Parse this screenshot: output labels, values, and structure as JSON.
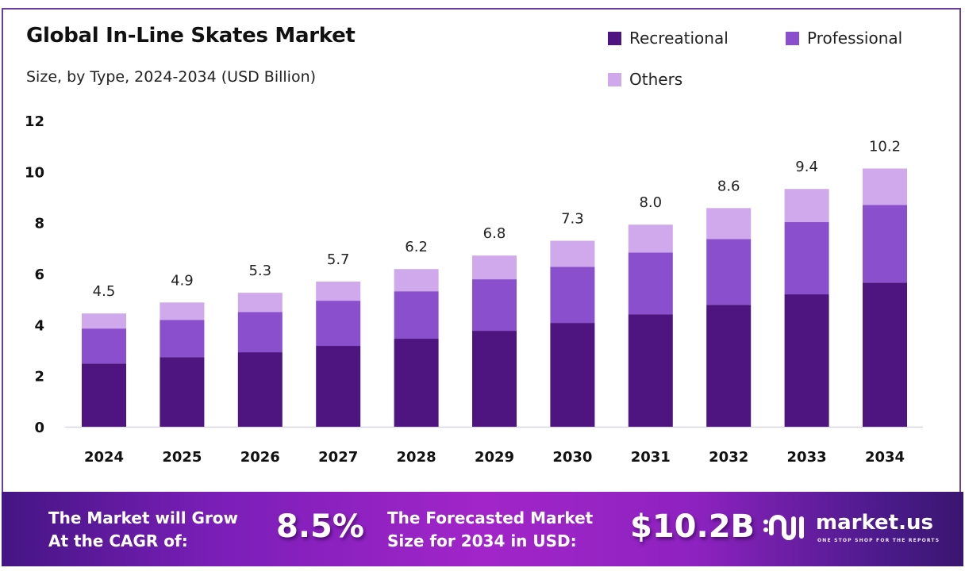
{
  "header": {
    "title": "Global In-Line Skates Market",
    "subtitle": "Size, by Type, 2024-2034 (USD Billion)"
  },
  "colors": {
    "recreational": "#4e1580",
    "professional": "#8a4fcc",
    "others": "#d0a8ec",
    "frame": "#6b3fa0"
  },
  "chart_data": {
    "type": "bar",
    "stacked": true,
    "title": "Global In-Line Skates Market",
    "subtitle": "Size, by Type, 2024-2034 (USD Billion)",
    "xlabel": "",
    "ylabel": "",
    "categories": [
      "2024",
      "2025",
      "2026",
      "2027",
      "2028",
      "2029",
      "2030",
      "2031",
      "2032",
      "2033",
      "2034"
    ],
    "series": [
      {
        "name": "Recreational",
        "values": [
          2.48,
          2.73,
          2.92,
          3.17,
          3.45,
          3.76,
          4.07,
          4.41,
          4.78,
          5.19,
          5.65
        ]
      },
      {
        "name": "Professional",
        "values": [
          1.37,
          1.46,
          1.58,
          1.77,
          1.86,
          2.02,
          2.2,
          2.42,
          2.58,
          2.83,
          3.04
        ]
      },
      {
        "name": "Others",
        "values": [
          0.59,
          0.68,
          0.75,
          0.75,
          0.87,
          0.93,
          1.02,
          1.09,
          1.21,
          1.3,
          1.43
        ]
      }
    ],
    "totals": [
      "4.5",
      "4.9",
      "5.3",
      "5.7",
      "6.2",
      "6.8",
      "7.3",
      "8.0",
      "8.6",
      "9.4",
      "10.2"
    ],
    "ylim": [
      0,
      12
    ],
    "yticks": [
      "0",
      "2",
      "4",
      "6",
      "8",
      "10",
      "12"
    ],
    "grid": false,
    "legend": "top-right"
  },
  "banner": {
    "cagr_label_line1": "The Market will Grow",
    "cagr_label_line2": "At the CAGR of:",
    "cagr_value": "8.5%",
    "forecast_label_line1": "The Forecasted Market",
    "forecast_label_line2": "Size for 2034 in USD:",
    "forecast_value": "$10.2B",
    "brand_name": "market.us",
    "brand_tagline": "ONE STOP SHOP FOR THE REPORTS",
    "brand_icon": "market-us-logo-icon"
  }
}
